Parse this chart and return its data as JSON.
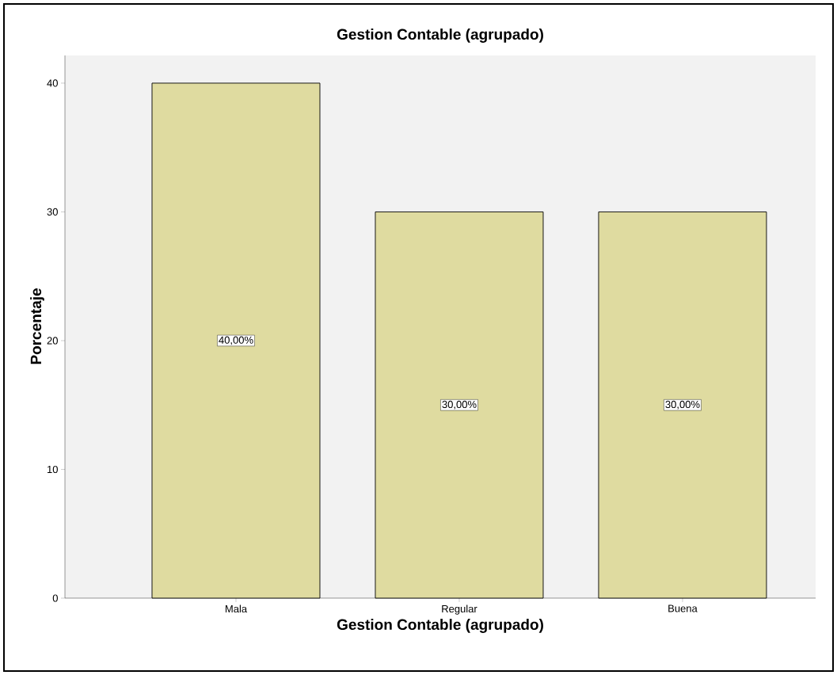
{
  "chart_data": {
    "type": "bar",
    "title": "Gestion Contable (agrupado)",
    "xlabel": "Gestion Contable (agrupado)",
    "ylabel": "Porcentaje",
    "categories": [
      "Mala",
      "Regular",
      "Buena"
    ],
    "values": [
      40,
      30,
      30
    ],
    "value_labels": [
      "40,00%",
      "30,00%",
      "30,00%"
    ],
    "color": "#dfdba0",
    "ylim": [
      0,
      42.15
    ],
    "yticks": [
      0,
      10,
      20,
      30,
      40
    ]
  }
}
